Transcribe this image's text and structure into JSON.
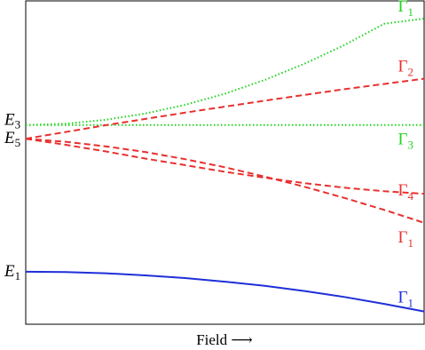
{
  "chart_data": {
    "type": "line",
    "title": "",
    "xlabel": "Field",
    "xlabel_arrow": "⟶",
    "ylabel": "",
    "xlim": [
      0,
      1
    ],
    "ylim": [
      0,
      1
    ],
    "grid": false,
    "level_labels": [
      {
        "main": "E",
        "sub": "3",
        "at_y": 0.646
      },
      {
        "main": "E",
        "sub": "5",
        "at_y": 0.6
      },
      {
        "main": "E",
        "sub": "1",
        "at_y": 0.157
      }
    ],
    "series": [
      {
        "label_main": "Γ",
        "label_sub": "1",
        "color": "#1fd41f",
        "style": "dotted",
        "x": [
          0,
          0.1,
          0.2,
          0.3,
          0.4,
          0.5,
          0.6,
          0.7,
          0.8,
          0.9,
          1.0
        ],
        "y": [
          0.646,
          0.65,
          0.663,
          0.684,
          0.713,
          0.75,
          0.796,
          0.85,
          0.912,
          0.983,
          1.0
        ]
      },
      {
        "label_main": "Γ",
        "label_sub": "3",
        "color": "#1fd41f",
        "style": "dotted",
        "x": [
          0,
          1.0
        ],
        "y": [
          0.646,
          0.646
        ]
      },
      {
        "label_main": "Γ",
        "label_sub": "2",
        "color": "#e8302e",
        "style": "dashed",
        "x": [
          0,
          0.2,
          0.4,
          0.6,
          0.8,
          1.0
        ],
        "y": [
          0.6,
          0.645,
          0.687,
          0.727,
          0.765,
          0.8
        ]
      },
      {
        "label_main": "Γ",
        "label_sub": "4",
        "color": "#e8302e",
        "style": "dashed",
        "x": [
          0,
          0.1,
          0.2,
          0.3,
          0.4,
          0.5,
          0.6,
          0.7,
          0.8,
          0.9,
          1.0
        ],
        "y": [
          0.6,
          0.58,
          0.558,
          0.534,
          0.512,
          0.49,
          0.47,
          0.452,
          0.437,
          0.425,
          0.417
        ]
      },
      {
        "label_main": "Γ",
        "label_sub": "1",
        "color": "#e8302e",
        "style": "dashed",
        "x": [
          0,
          0.1,
          0.2,
          0.3,
          0.4,
          0.5,
          0.6,
          0.7,
          0.8,
          0.9,
          1.0
        ],
        "y": [
          0.6,
          0.59,
          0.575,
          0.556,
          0.532,
          0.505,
          0.474,
          0.44,
          0.403,
          0.363,
          0.32
        ]
      },
      {
        "label_main": "Γ",
        "label_sub": "1",
        "color": "#1f2fd8",
        "style": "solid",
        "x": [
          0,
          0.1,
          0.2,
          0.3,
          0.4,
          0.5,
          0.6,
          0.7,
          0.8,
          0.9,
          1.0
        ],
        "y": [
          0.157,
          0.156,
          0.152,
          0.145,
          0.136,
          0.124,
          0.11,
          0.093,
          0.073,
          0.05,
          0.025
        ]
      }
    ]
  }
}
